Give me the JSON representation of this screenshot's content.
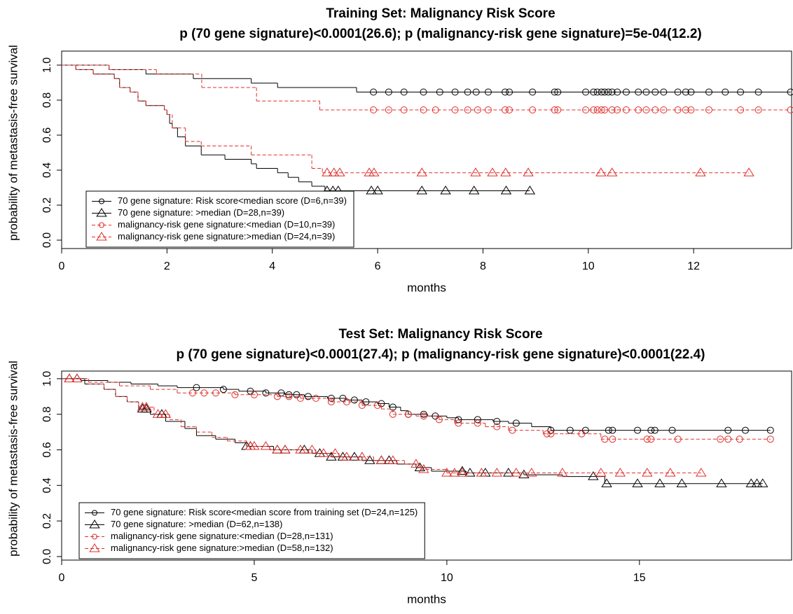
{
  "charts": [
    {
      "type": "step",
      "title": "Training Set: Malignancy Risk Score",
      "subtitle": "p (70 gene signature)<0.0001(26.6); p (malignancy-risk gene signature)=5e-04(12.2)",
      "xlabel": "months",
      "ylabel": "probability of metastasis-free survival",
      "xlim": [
        0,
        13.86
      ],
      "ylim": [
        -0.048,
        1.08
      ],
      "xticks": [
        0,
        2,
        4,
        6,
        8,
        10,
        12
      ],
      "yticks": [
        {
          "value": 0,
          "label": "0.0"
        },
        0.2,
        0.4,
        0.6,
        0.8,
        {
          "value": 1,
          "label": "1.0"
        }
      ],
      "legend": "bottomleft",
      "series": [
        {
          "name": "70 gene signature: Risk score<median score (D=6,n=39)",
          "color": "#000000",
          "line": "solid",
          "marker": "circle",
          "x": [
            0,
            0.9,
            1.6,
            2.5,
            3.6,
            4.1,
            5.6
          ],
          "values": [
            1,
            0.974,
            0.949,
            0.923,
            0.897,
            0.872,
            0.846
          ],
          "censor_x": [
            5.92,
            6.21,
            6.5,
            6.87,
            7.18,
            7.47,
            7.71,
            7.87,
            8.1,
            8.42,
            8.5,
            8.94,
            9.36,
            9.42,
            9.95,
            10.1,
            10.17,
            10.25,
            10.31,
            10.38,
            10.45,
            10.55,
            10.72,
            10.95,
            11.1,
            11.27,
            11.43,
            11.7,
            11.85,
            11.95,
            12.29,
            12.6,
            12.89,
            13.23,
            13.84
          ]
        },
        {
          "name": "70 gene signature: >median (D=28,n=39)",
          "color": "#000000",
          "line": "solid",
          "marker": "triangle",
          "x": [
            0,
            0.27,
            0.6,
            1.0,
            1.1,
            1.3,
            1.45,
            1.6,
            1.95,
            2.0,
            2.05,
            2.1,
            2.2,
            2.35,
            2.65,
            3.1,
            3.6,
            3.7,
            4.1,
            4.3,
            4.5,
            4.75,
            5.0
          ],
          "values": [
            1,
            0.974,
            0.949,
            0.923,
            0.872,
            0.846,
            0.795,
            0.769,
            0.744,
            0.718,
            0.667,
            0.641,
            0.59,
            0.538,
            0.487,
            0.462,
            0.436,
            0.41,
            0.385,
            0.359,
            0.333,
            0.308,
            0.282
          ],
          "censor_x": [
            5.04,
            5.15,
            5.25,
            5.88,
            6.0,
            6.84,
            7.29,
            7.83,
            8.44,
            8.89
          ]
        },
        {
          "name": "malignancy-risk gene signature:<median (D=10,n=39)",
          "color": "#e0302c",
          "line": "dashed",
          "marker": "circle",
          "x": [
            0,
            0.9,
            1.8,
            2.66,
            3.7,
            4.9
          ],
          "values": [
            1,
            0.974,
            0.949,
            0.872,
            0.795,
            0.744
          ],
          "censor_x": [
            5.92,
            6.21,
            6.5,
            6.87,
            7.1,
            7.47,
            7.71,
            7.9,
            8.1,
            8.42,
            8.5,
            8.94,
            9.36,
            9.42,
            9.95,
            10.1,
            10.17,
            10.25,
            10.31,
            10.45,
            10.55,
            10.72,
            10.95,
            11.1,
            11.27,
            11.43,
            11.7,
            11.85,
            11.95,
            12.29,
            12.89,
            13.23,
            13.84
          ]
        },
        {
          "name": "malignancy-risk gene signature:>median (D=24,n=39)",
          "color": "#e0302c",
          "line": "dashed",
          "marker": "triangle",
          "x": [
            0,
            0.27,
            0.6,
            1.0,
            1.1,
            1.3,
            1.45,
            1.6,
            1.95,
            2.0,
            2.1,
            2.35,
            2.65,
            3.6,
            4.75,
            4.95
          ],
          "values": [
            1,
            0.974,
            0.949,
            0.923,
            0.872,
            0.846,
            0.795,
            0.769,
            0.744,
            0.718,
            0.641,
            0.564,
            0.538,
            0.487,
            0.41,
            0.385
          ],
          "censor_x": [
            5.04,
            5.17,
            5.28,
            5.84,
            5.93,
            6.84,
            7.86,
            8.18,
            8.43,
            8.86,
            10.24,
            10.45,
            12.13,
            13.05
          ]
        }
      ]
    },
    {
      "type": "step",
      "title": "Test Set: Malignancy Risk Score",
      "subtitle": "p (70 gene signature)<0.0001(27.4); p (malignancy-risk gene signature)<0.0001(22.4)",
      "xlabel": "months",
      "ylabel": "probability of metastasis-free survival",
      "xlim": [
        0,
        18.95
      ],
      "ylim": [
        -0.02,
        1.043
      ],
      "xticks": [
        0,
        5,
        10,
        15
      ],
      "yticks": [
        {
          "value": 0,
          "label": "0.0"
        },
        0.2,
        0.4,
        0.6,
        0.8,
        {
          "value": 1,
          "label": "1.0"
        }
      ],
      "legend": "bottomleft",
      "series": [
        {
          "name": "70 gene signature: Risk score<median score from training set (D=24,n=125)",
          "color": "#000000",
          "line": "solid",
          "marker": "circle",
          "x": [
            0,
            0.5,
            1.2,
            1.8,
            2.5,
            3.0,
            4.2,
            4.6,
            5.3,
            5.8,
            6.3,
            6.9,
            7.4,
            7.8,
            8.2,
            8.5,
            8.8,
            9.0,
            9.5,
            10.0,
            10.3,
            11.2,
            11.6,
            12.2,
            12.7
          ],
          "values": [
            1,
            0.99,
            0.98,
            0.97,
            0.96,
            0.95,
            0.94,
            0.93,
            0.92,
            0.91,
            0.9,
            0.89,
            0.88,
            0.87,
            0.86,
            0.84,
            0.82,
            0.8,
            0.79,
            0.78,
            0.77,
            0.76,
            0.75,
            0.73,
            0.71
          ],
          "censor_x": [
            3.5,
            4.2,
            4.9,
            5.3,
            5.7,
            5.9,
            6.1,
            6.4,
            7.0,
            7.3,
            7.6,
            7.9,
            8.3,
            8.6,
            9.0,
            9.4,
            9.7,
            10.3,
            10.8,
            11.3,
            11.8,
            12.7,
            13.2,
            13.6,
            14.2,
            14.3,
            14.95,
            15.3,
            15.4,
            15.85,
            17.3,
            17.75,
            18.4
          ]
        },
        {
          "name": "70 gene signature: >median (D=62,n=138)",
          "color": "#000000",
          "line": "solid",
          "marker": "triangle",
          "x": [
            0,
            0.6,
            1.1,
            1.4,
            1.7,
            2.0,
            2.3,
            2.7,
            3.2,
            3.5,
            4.0,
            4.5,
            4.8,
            5.5,
            6.5,
            7.0,
            7.8,
            8.7,
            9.2,
            9.6,
            10.5,
            12.0,
            13.0,
            14.1
          ],
          "values": [
            1,
            0.97,
            0.94,
            0.9,
            0.87,
            0.83,
            0.8,
            0.76,
            0.72,
            0.68,
            0.66,
            0.64,
            0.62,
            0.6,
            0.58,
            0.56,
            0.54,
            0.52,
            0.5,
            0.48,
            0.47,
            0.46,
            0.45,
            0.41
          ],
          "censor_x": [
            0.2,
            0.4,
            2.1,
            2.2,
            2.6,
            4.8,
            4.9,
            5.6,
            5.8,
            6.3,
            6.7,
            7.0,
            7.3,
            7.6,
            8.0,
            8.3,
            8.5,
            9.3,
            10.4,
            10.6,
            11.0,
            11.6,
            12.0,
            13.8,
            14.15,
            14.95,
            15.53,
            16.1,
            17.13,
            17.9,
            18.05,
            18.2
          ]
        },
        {
          "name": "malignancy-risk gene signature:<median (D=28,n=131)",
          "color": "#e0302c",
          "line": "dashed",
          "marker": "circle",
          "x": [
            0,
            0.7,
            1.5,
            2.3,
            3.0,
            4.5,
            5.6,
            6.2,
            7.0,
            7.8,
            8.3,
            8.6,
            9.2,
            9.8,
            10.2,
            11.0,
            11.6,
            12.5,
            14.0
          ],
          "values": [
            1,
            0.98,
            0.96,
            0.94,
            0.92,
            0.91,
            0.9,
            0.89,
            0.87,
            0.85,
            0.83,
            0.8,
            0.79,
            0.77,
            0.75,
            0.73,
            0.71,
            0.69,
            0.66
          ],
          "censor_x": [
            3.4,
            3.7,
            4.0,
            4.5,
            5.0,
            5.6,
            5.9,
            6.2,
            6.6,
            7.0,
            7.4,
            7.8,
            8.2,
            8.6,
            9.0,
            9.4,
            9.8,
            10.3,
            10.8,
            11.3,
            11.7,
            12.6,
            12.7,
            13.5,
            14.1,
            14.3,
            15.2,
            15.3,
            16.0,
            17.1,
            17.3,
            17.6,
            18.4
          ]
        },
        {
          "name": "malignancy-risk gene signature:>median (D=58,n=132)",
          "color": "#e0302c",
          "line": "dashed",
          "marker": "triangle",
          "x": [
            0,
            0.7,
            1.1,
            1.4,
            1.7,
            2.0,
            2.4,
            2.8,
            3.1,
            3.5,
            3.9,
            4.3,
            4.8,
            5.4,
            6.6,
            7.2,
            8.1,
            8.9,
            9.3,
            10.0
          ],
          "values": [
            1,
            0.97,
            0.94,
            0.9,
            0.87,
            0.84,
            0.8,
            0.77,
            0.73,
            0.7,
            0.67,
            0.65,
            0.62,
            0.6,
            0.58,
            0.56,
            0.54,
            0.52,
            0.49,
            0.47
          ],
          "censor_x": [
            0.2,
            0.4,
            2.1,
            2.2,
            2.5,
            2.7,
            4.9,
            5.0,
            5.3,
            5.6,
            5.8,
            6.2,
            6.5,
            6.8,
            7.1,
            7.4,
            7.8,
            8.3,
            8.6,
            9.2,
            9.4,
            10.0,
            10.2,
            10.4,
            10.9,
            11.3,
            11.8,
            12.2,
            13.0,
            14.0,
            14.5,
            15.2,
            15.8,
            16.6
          ]
        }
      ]
    }
  ]
}
